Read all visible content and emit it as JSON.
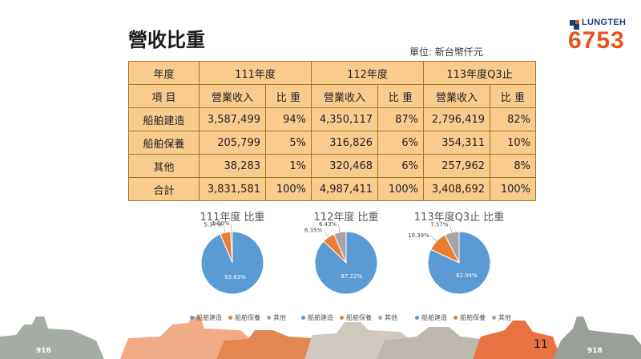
{
  "slide": {
    "title": "營收比重",
    "unit_note": "單位: 新台幣仟元",
    "page_number": "11",
    "brand_name": "LUNGTEH",
    "stock_code": "6753",
    "hull_number_left": "918",
    "hull_number_right": "918"
  },
  "table": {
    "year_label": "年度",
    "item_label": "項 目",
    "years": [
      "111年度",
      "112年度",
      "113年度Q3止"
    ],
    "sub_headers": [
      "營業收入",
      "比 重"
    ],
    "rows": [
      {
        "name": "船舶建造",
        "cells": [
          "3,587,499",
          "94%",
          "4,350,117",
          "87%",
          "2,796,419",
          "82%"
        ]
      },
      {
        "name": "船舶保養",
        "cells": [
          "205,799",
          "5%",
          "316,826",
          "6%",
          "354,311",
          "10%"
        ]
      },
      {
        "name": "其他",
        "cells": [
          "38,283",
          "1%",
          "320,468",
          "6%",
          "257,962",
          "8%"
        ]
      },
      {
        "name": "合計",
        "cells": [
          "3,831,581",
          "100%",
          "4,987,411",
          "100%",
          "3,408,692",
          "100%"
        ]
      }
    ]
  },
  "colors": {
    "ship_building": "#5b9bd5",
    "maintenance": "#ed7d31",
    "other": "#a5a5a5",
    "table_fill": "#f9cc8e",
    "brand_orange": "#e8541e",
    "brand_navy": "#1f3b78"
  },
  "legend": [
    "船舶建造",
    "船舶保養",
    "其他"
  ],
  "chart_data": [
    {
      "type": "pie",
      "title": "111年度 比重",
      "categories": [
        "船舶建造",
        "船舶保養",
        "其他"
      ],
      "values": [
        93.63,
        5.37,
        1.0
      ],
      "labels": [
        "93.63%",
        "5.37%",
        "1.00%"
      ]
    },
    {
      "type": "pie",
      "title": "112年度 比重",
      "categories": [
        "船舶建造",
        "船舶保養",
        "其他"
      ],
      "values": [
        87.22,
        6.35,
        6.43
      ],
      "labels": [
        "87.22%",
        "6.35%",
        "6.43%"
      ]
    },
    {
      "type": "pie",
      "title": "113年度Q3止 比重",
      "categories": [
        "船舶建造",
        "船舶保養",
        "其他"
      ],
      "values": [
        82.04,
        10.39,
        7.57
      ],
      "labels": [
        "82.04%",
        "10.39%",
        "7.57%"
      ]
    }
  ]
}
